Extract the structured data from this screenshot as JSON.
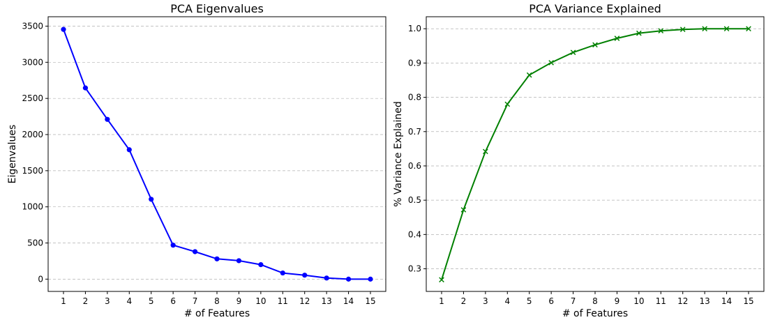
{
  "chart_data": [
    {
      "type": "line",
      "title": "PCA Eigenvalues",
      "xlabel": "# of Features",
      "ylabel": "Eigenvalues",
      "x": [
        1,
        2,
        3,
        4,
        5,
        6,
        7,
        8,
        9,
        10,
        11,
        12,
        13,
        14,
        15
      ],
      "xlim": [
        0.3,
        15.7
      ],
      "ylim": [
        -170,
        3630
      ],
      "yticks": [
        0,
        500,
        1000,
        1500,
        2000,
        2500,
        3000,
        3500
      ],
      "grid": "y",
      "series": [
        {
          "values": [
            3455,
            2645,
            2210,
            1790,
            1105,
            470,
            380,
            280,
            255,
            200,
            85,
            55,
            15,
            0,
            0
          ],
          "color": "#0000ff",
          "marker": "circle"
        }
      ]
    },
    {
      "type": "line",
      "title": "PCA Variance Explained",
      "xlabel": "# of Features",
      "ylabel": "% Variance Explained",
      "x": [
        1,
        2,
        3,
        4,
        5,
        6,
        7,
        8,
        9,
        10,
        11,
        12,
        13,
        14,
        15
      ],
      "xlim": [
        0.3,
        15.7
      ],
      "ylim": [
        0.234,
        1.035
      ],
      "yticks": [
        0.3,
        0.4,
        0.5,
        0.6,
        0.7,
        0.8,
        0.9,
        1.0
      ],
      "ytick_labels": [
        "0.3",
        "0.4",
        "0.5",
        "0.6",
        "0.7",
        "0.8",
        "0.9",
        "1.0"
      ],
      "grid": "y",
      "series": [
        {
          "values": [
            0.268,
            0.472,
            0.642,
            0.78,
            0.865,
            0.901,
            0.931,
            0.953,
            0.972,
            0.987,
            0.994,
            0.998,
            1.0,
            1.0,
            1.0
          ],
          "color": "#008000",
          "marker": "x"
        }
      ]
    }
  ]
}
